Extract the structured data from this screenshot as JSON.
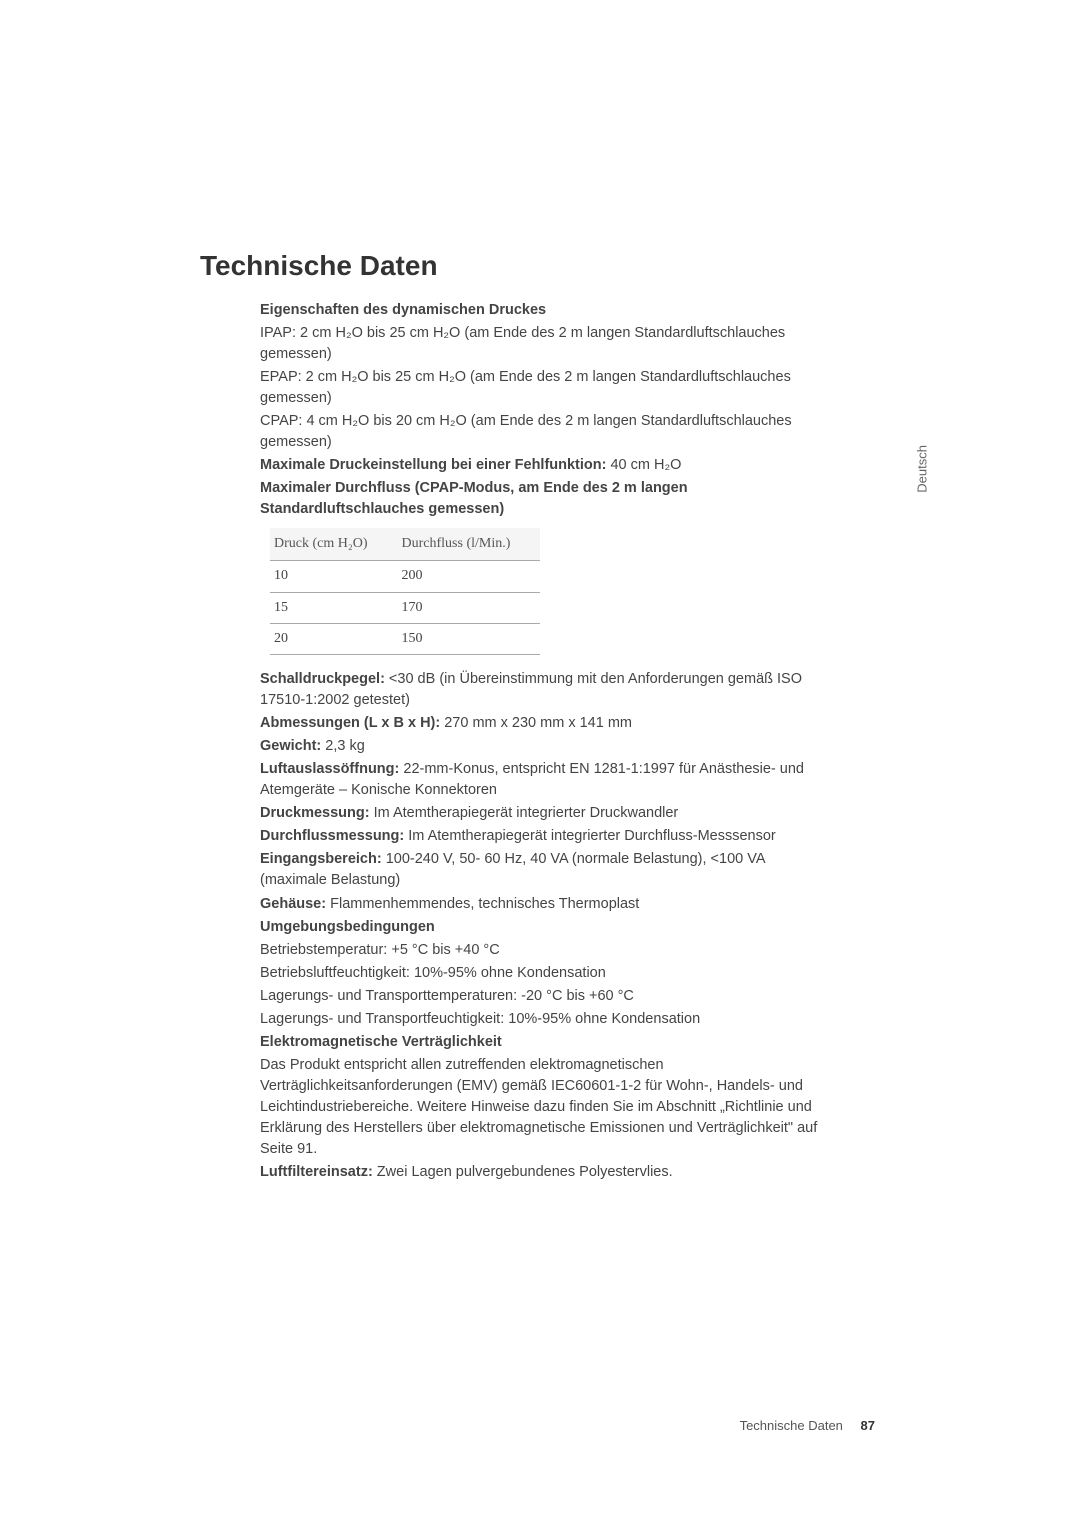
{
  "title": "Technische Daten",
  "side_tab": "Deutsch",
  "sections": {
    "dyn_pressure": {
      "heading": "Eigenschaften des dynamischen Druckes",
      "ipap": "IPAP: 2 cm H₂O bis 25 cm H₂O (am Ende des 2 m langen Standardluftschlauches gemessen)",
      "epap": "EPAP: 2 cm H₂O bis 25 cm H₂O (am Ende des 2 m langen Standardluftschlauches gemessen)",
      "cpap": "CPAP: 4 cm H₂O bis 20 cm H₂O (am Ende des 2 m langen Standardluftschlauches gemessen)"
    },
    "max_pressure_label": "Maximale Druckeinstellung bei einer Fehlfunktion:",
    "max_pressure_value": " 40 cm H₂O",
    "max_flow": "Maximaler Durchfluss (CPAP-Modus, am Ende des 2 m langen Standardluftschlauches gemessen)",
    "table": {
      "col1": "Druck (cm H₂O)",
      "col2": "Durchfluss (l/Min.)",
      "rows": [
        {
          "p": "10",
          "f": "200"
        },
        {
          "p": "15",
          "f": "170"
        },
        {
          "p": "20",
          "f": "150"
        }
      ]
    },
    "specs": {
      "sound_label": "Schalldruckpegel:",
      "sound_value": " <30 dB (in Übereinstimmung mit den Anforderungen gemäß ISO 17510-1:2002 getestet)",
      "dim_label": "Abmessungen (L x B x H):",
      "dim_value": " 270 mm x 230 mm x 141 mm",
      "weight_label": "Gewicht:",
      "weight_value": " 2,3 kg",
      "outlet_label": "Luftauslassöffnung:",
      "outlet_value": " 22-mm-Konus, entspricht EN 1281-1:1997 für Anästhesie- und Atemgeräte – Konische Konnektoren",
      "pmeasure_label": "Druckmessung:",
      "pmeasure_value": " Im Atemtherapiegerät integrierter Druckwandler",
      "fmeasure_label": "Durchflussmessung:",
      "fmeasure_value": " Im Atemtherapiegerät integrierter Durchfluss-Messsensor",
      "input_label": "Eingangsbereich:",
      "input_value": " 100-240 V, 50- 60 Hz, 40 VA (normale Belastung), <100 VA (maximale Belastung)",
      "housing_label": "Gehäuse:",
      "housing_value": " Flammenhemmendes, technisches Thermoplast",
      "env_heading": "Umgebungsbedingungen",
      "env_optemp": "Betriebstemperatur: +5 °C bis +40 °C",
      "env_ophum": "Betriebsluftfeuchtigkeit: 10%-95% ohne Kondensation",
      "env_storetemp": "Lagerungs- und Transporttemperaturen: -20 °C bis +60 °C",
      "env_storehum": "Lagerungs- und Transportfeuchtigkeit: 10%-95% ohne Kondensation",
      "emc_heading": "Elektromagnetische Verträglichkeit",
      "emc_body": "Das Produkt entspricht allen zutreffenden elektromagnetischen Verträglichkeitsanforderungen (EMV) gemäß IEC60601-1-2 für Wohn-, Handels- und Leichtindustriebereiche. Weitere Hinweise dazu finden Sie im Abschnitt „Richtlinie und Erklärung des Herstellers über elektromagnetische Emissionen und Verträglichkeit\" auf Seite 91.",
      "filter_label": "Luftfiltereinsatz:",
      "filter_value": " Zwei Lagen pulvergebundenes Polyestervlies."
    }
  },
  "footer": {
    "text": "Technische Daten",
    "page": "87"
  },
  "colors": {
    "background": "#ffffff",
    "title_color": "#333333",
    "body_color": "#444444",
    "border_color": "#aaaaaa",
    "table_header_bg": "#f5f5f5"
  },
  "fontsize": {
    "title": 28,
    "body": 14.5,
    "table": 14,
    "footer": 13
  }
}
